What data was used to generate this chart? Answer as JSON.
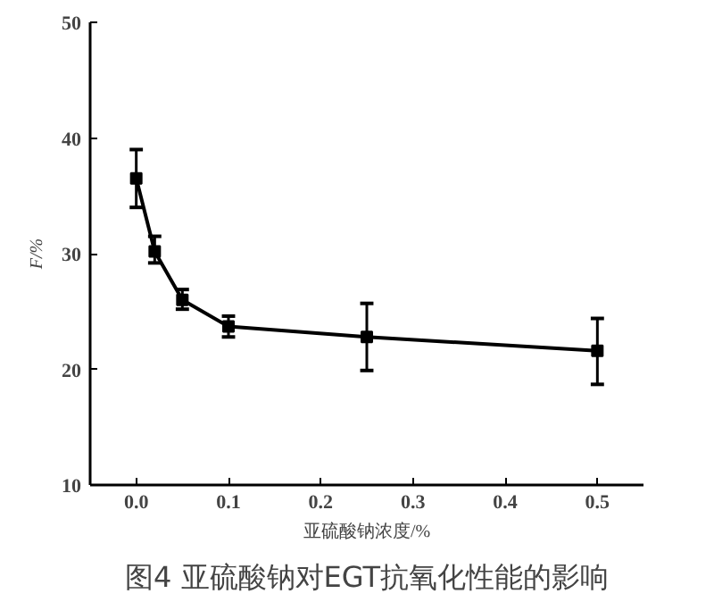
{
  "chart_data": {
    "type": "line",
    "title": "图4 亚硫酸钠对EGT抗氧化性能的影响",
    "xlabel": "亚硫酸钠浓度/%",
    "ylabel": "F/%",
    "x": [
      0,
      0.02,
      0.05,
      0.1,
      0.25,
      0.5
    ],
    "series": [
      {
        "color": "#000000",
        "values": [
          36.5,
          30.2,
          26.0,
          23.7,
          22.8,
          21.6
        ],
        "errors": [
          [
            34,
            39
          ],
          [
            29.2,
            31.5
          ],
          [
            25.2,
            26.9
          ],
          [
            22.8,
            24.6
          ],
          [
            19.9,
            25.7
          ],
          [
            18.7,
            24.4
          ]
        ]
      }
    ],
    "xlim": [
      -0.05,
      0.55
    ],
    "xticks": [
      {
        "value": 0,
        "label": "0.0"
      },
      0.1,
      0.2,
      0.3,
      0.4,
      0.5
    ],
    "ylim": [
      10,
      50
    ],
    "yticks": [
      10,
      20,
      30,
      40,
      50
    ],
    "grid": false,
    "marker": "square",
    "line_style": "solid"
  }
}
